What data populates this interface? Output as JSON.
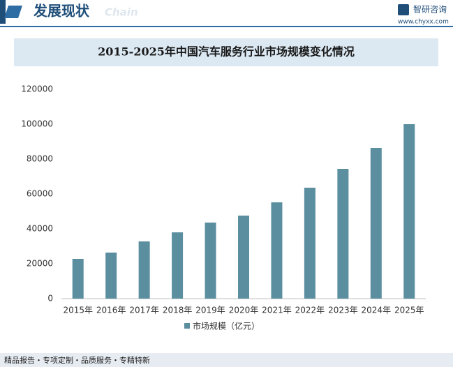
{
  "header": {
    "title": "发展现状",
    "watermark": "Chain",
    "logo": "智研咨询",
    "website": "www.chyxx.com"
  },
  "chart_data": {
    "type": "bar",
    "title": "2015-2025年中国汽车服务行业市场规模变化情况",
    "categories": [
      "2015年",
      "2016年",
      "2017年",
      "2018年",
      "2019年",
      "2020年",
      "2021年",
      "2022年",
      "2023年",
      "2024年",
      "2025年"
    ],
    "series": [
      {
        "name": "市场规模（亿元）",
        "color": "#5b8fa0",
        "values": [
          22800,
          26400,
          32800,
          38000,
          43600,
          47600,
          55200,
          63600,
          74400,
          86400,
          100000
        ]
      }
    ],
    "ylim": [
      0,
      120000
    ],
    "yticks": [
      0,
      20000,
      40000,
      60000,
      80000,
      100000,
      120000
    ],
    "legend": "bottom"
  },
  "footer": {
    "text": "精品报告・专项定制・品质服务・专精特新"
  }
}
